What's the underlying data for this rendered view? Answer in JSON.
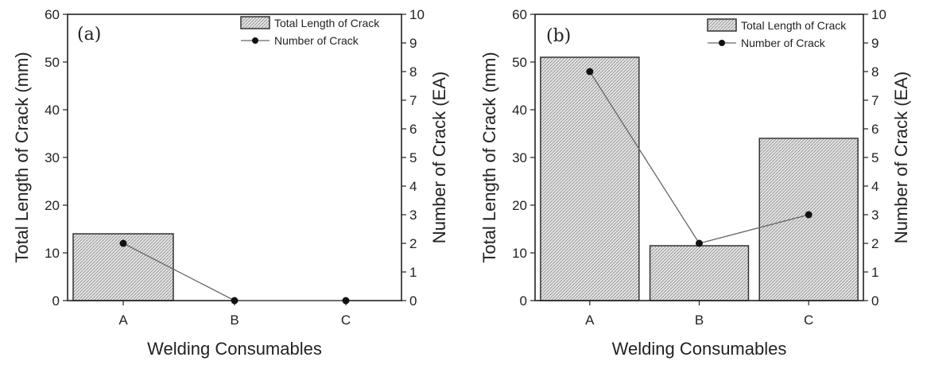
{
  "chart_data": [
    {
      "type": "bar",
      "panel_label": "(a)",
      "categories": [
        "A",
        "B",
        "C"
      ],
      "xlabel": "Welding Consumables",
      "ylabel": "Total Length of Crack (mm)",
      "y2label": "Number of Crack (EA)",
      "ylim": [
        0,
        60
      ],
      "y2lim": [
        0,
        10
      ],
      "yticks": [
        "0",
        "10",
        "20",
        "30",
        "40",
        "50",
        "60"
      ],
      "y2ticks": [
        "0",
        "1",
        "2",
        "3",
        "4",
        "5",
        "6",
        "7",
        "8",
        "9",
        "10"
      ],
      "legend_position": "top-right",
      "series": [
        {
          "name": "Total Length of Crack",
          "kind": "bar",
          "axis": "left",
          "values": [
            14,
            0,
            0
          ]
        },
        {
          "name": "Number of Crack",
          "kind": "line",
          "axis": "right",
          "values": [
            2,
            0,
            0
          ]
        }
      ]
    },
    {
      "type": "bar",
      "panel_label": "(b)",
      "categories": [
        "A",
        "B",
        "C"
      ],
      "xlabel": "Welding Consumables",
      "ylabel": "Total Length of Crack (mm)",
      "y2label": "Number of Crack (EA)",
      "ylim": [
        0,
        60
      ],
      "y2lim": [
        0,
        10
      ],
      "yticks": [
        "0",
        "10",
        "20",
        "30",
        "40",
        "50",
        "60"
      ],
      "y2ticks": [
        "0",
        "1",
        "2",
        "3",
        "4",
        "5",
        "6",
        "7",
        "8",
        "9",
        "10"
      ],
      "legend_position": "top-right",
      "series": [
        {
          "name": "Total Length of Crack",
          "kind": "bar",
          "axis": "left",
          "values": [
            51,
            11.5,
            34
          ]
        },
        {
          "name": "Number of Crack",
          "kind": "line",
          "axis": "right",
          "values": [
            8,
            2,
            3
          ]
        }
      ]
    }
  ]
}
